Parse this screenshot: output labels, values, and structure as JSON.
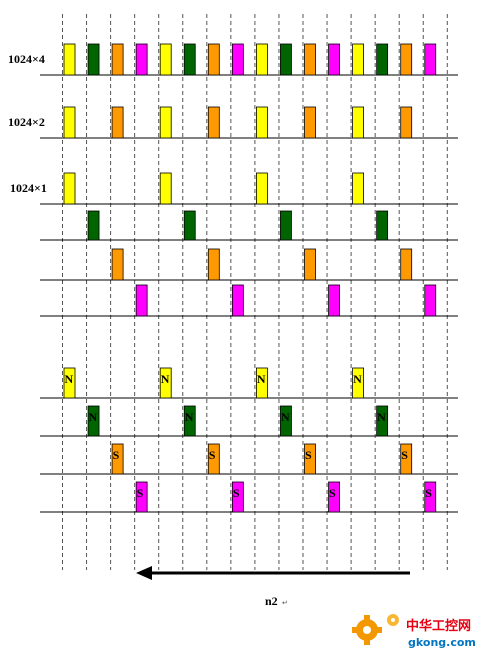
{
  "colors": {
    "yellow": "#ffff00",
    "green": "#006400",
    "orange": "#ff9900",
    "magenta": "#ff00ff",
    "arrow": "#000000",
    "watermark_orange": "#f39800",
    "watermark_red": "#e60012",
    "watermark_blue": "#0075c2"
  },
  "rows": [
    {
      "label": "1024×4",
      "pulses": [
        "yellow",
        "green",
        "orange",
        "magenta",
        "yellow",
        "green",
        "orange",
        "magenta",
        "yellow",
        "green",
        "orange",
        "magenta",
        "yellow",
        "green",
        "orange",
        "magenta"
      ]
    },
    {
      "label": "1024×2",
      "pulses": [
        "yellow",
        "",
        "orange",
        "",
        "yellow",
        "",
        "orange",
        "",
        "yellow",
        "",
        "orange",
        "",
        "yellow",
        "",
        "orange",
        ""
      ]
    },
    {
      "label": "1024×1",
      "pulses": [
        "yellow",
        "",
        "",
        "",
        "yellow",
        "",
        "",
        "",
        "yellow",
        "",
        "",
        "",
        "yellow",
        "",
        "",
        ""
      ]
    },
    {
      "label": "",
      "pulses": [
        "",
        "green",
        "",
        "",
        "",
        "green",
        "",
        "",
        "",
        "green",
        "",
        "",
        "",
        "green",
        "",
        ""
      ]
    },
    {
      "label": "",
      "pulses": [
        "",
        "",
        "orange",
        "",
        "",
        "",
        "orange",
        "",
        "",
        "",
        "orange",
        "",
        "",
        "",
        "orange",
        ""
      ]
    },
    {
      "label": "",
      "pulses": [
        "",
        "",
        "",
        "magenta",
        "",
        "",
        "",
        "magenta",
        "",
        "",
        "",
        "magenta",
        "",
        "",
        "",
        "magenta"
      ]
    },
    {
      "label": "",
      "pulses": [
        "yellow",
        "",
        "",
        "",
        "yellow",
        "",
        "",
        "",
        "yellow",
        "",
        "",
        "",
        "yellow",
        "",
        "",
        ""
      ],
      "pole": "N"
    },
    {
      "label": "",
      "pulses": [
        "",
        "green",
        "",
        "",
        "",
        "green",
        "",
        "",
        "",
        "green",
        "",
        "",
        "",
        "green",
        "",
        ""
      ],
      "pole": "N"
    },
    {
      "label": "",
      "pulses": [
        "",
        "",
        "orange",
        "",
        "",
        "",
        "orange",
        "",
        "",
        "",
        "orange",
        "",
        "",
        "",
        "orange",
        ""
      ],
      "pole": "S"
    },
    {
      "label": "",
      "pulses": [
        "",
        "",
        "",
        "magenta",
        "",
        "",
        "",
        "magenta",
        "",
        "",
        "",
        "magenta",
        "",
        "",
        "",
        "magenta"
      ],
      "pole": "S"
    }
  ],
  "arrow_direction": "left",
  "caption": "n2",
  "watermark": {
    "cn": "中华工控网",
    "domain": "gkong.com"
  }
}
